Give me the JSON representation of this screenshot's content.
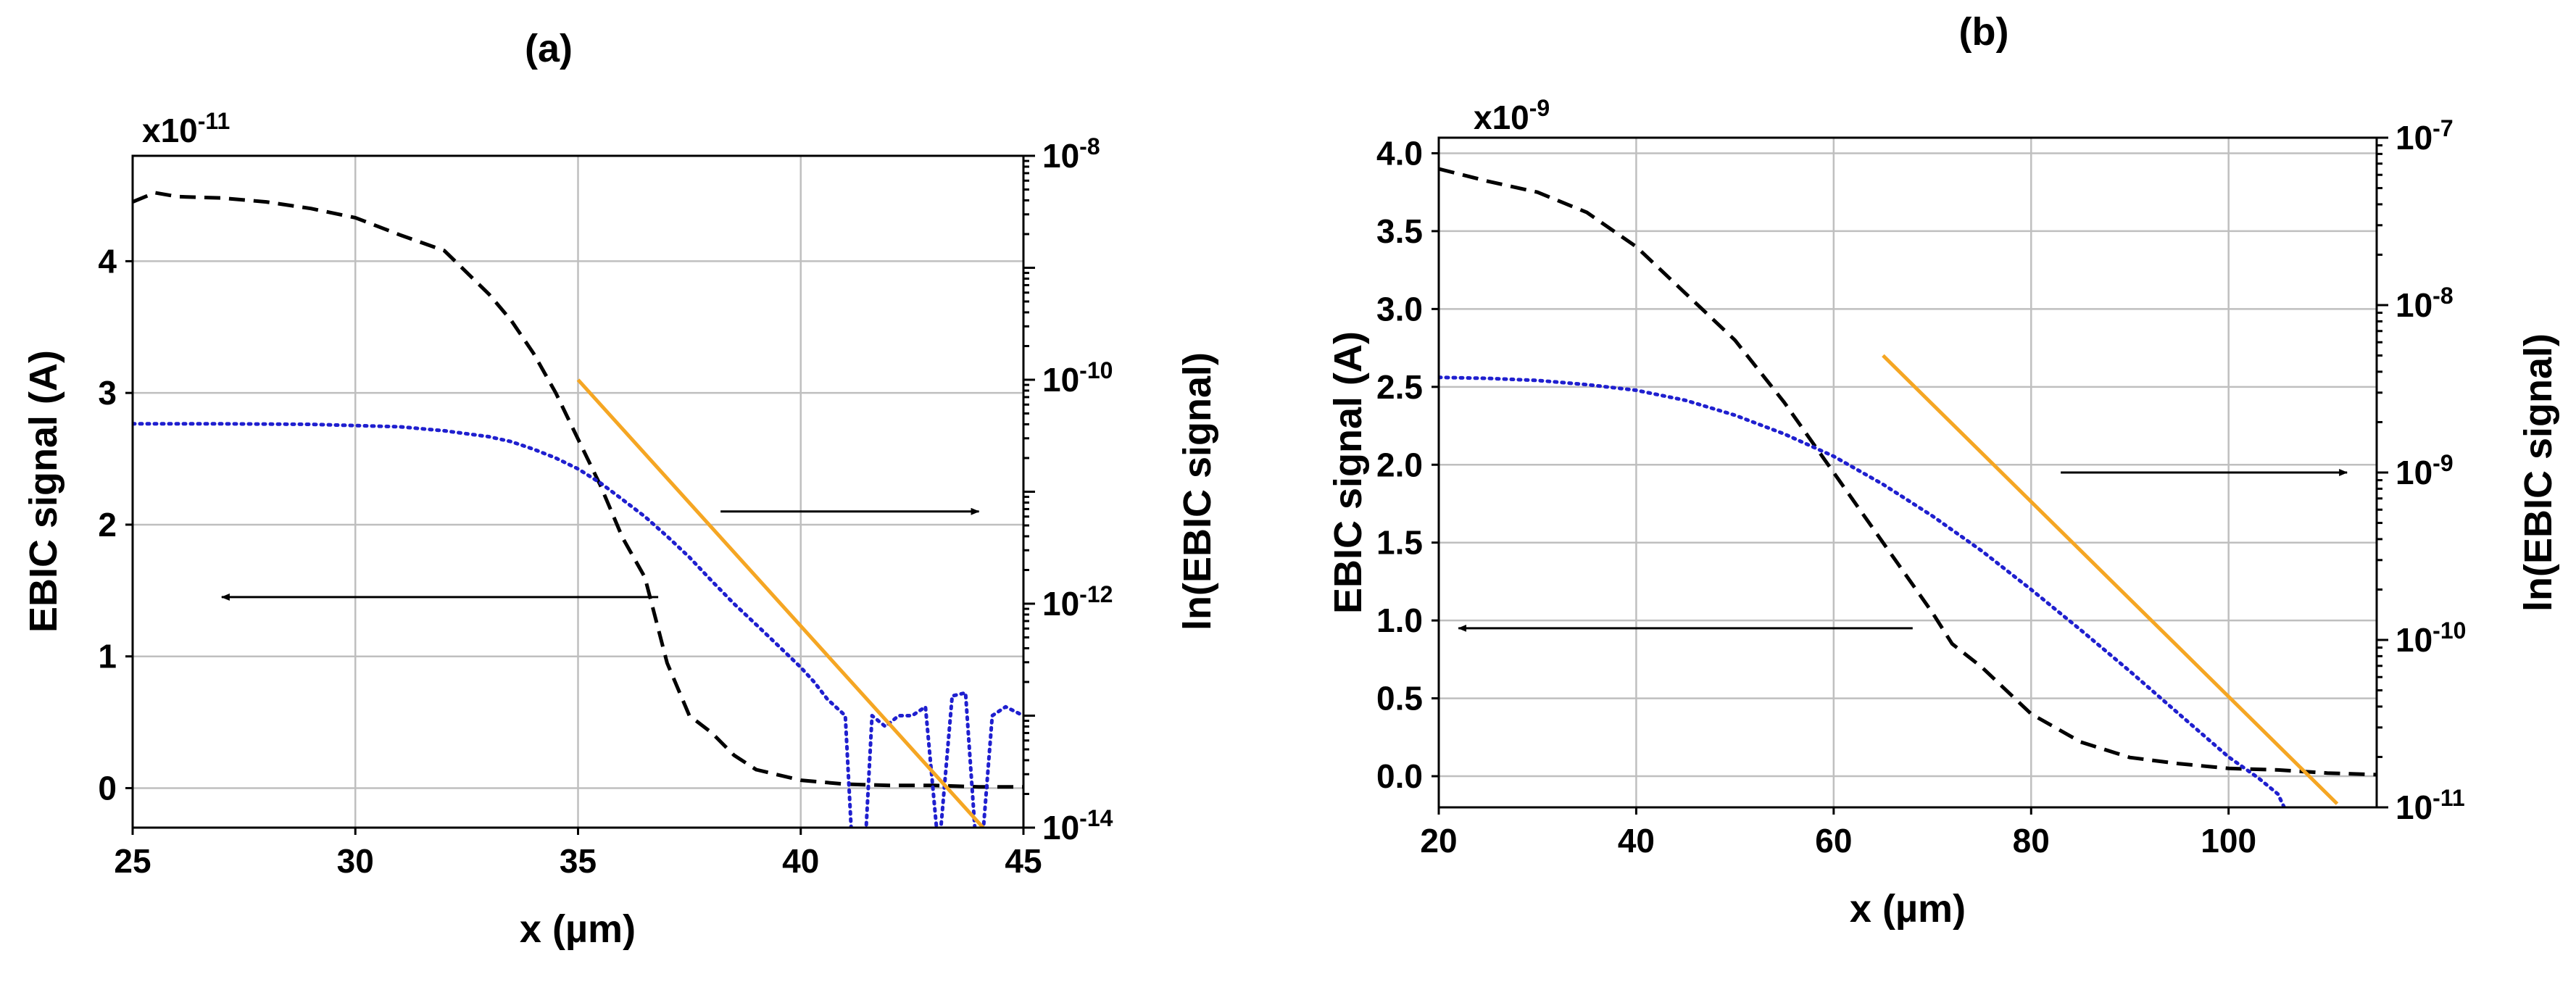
{
  "chart_data": [
    {
      "type": "line",
      "panel_label": "(a)",
      "xlabel": "x (µm)",
      "ylabel": "EBIC signal (A)",
      "ylabel_right": "ln(EBIC signal)",
      "xlim": [
        25,
        45
      ],
      "ylim": [
        -0.3,
        4.8
      ],
      "y_multiplier": "x10",
      "y_multiplier_exp": "-11",
      "x_ticks": [
        "25",
        "30",
        "35",
        "40",
        "45"
      ],
      "y_ticks": [
        "0",
        "1",
        "2",
        "3",
        "4"
      ],
      "y2_scale": "log",
      "y2_tick_bases": [
        "10",
        "10",
        "10",
        "10"
      ],
      "y2_tick_exps": [
        "-8",
        "-10",
        "-12",
        "-14"
      ],
      "grid": true,
      "series": [
        {
          "color": "#000000",
          "style": "dashed",
          "axis": "left",
          "x": [
            25,
            25.5,
            26,
            27,
            28,
            29,
            30,
            31,
            32,
            33,
            33.5,
            34,
            34.5,
            35,
            35.5,
            36,
            36.5,
            37,
            37.5,
            38,
            38.5,
            39,
            40,
            41,
            42,
            43,
            44,
            45
          ],
          "y": [
            4.45,
            4.52,
            4.49,
            4.48,
            4.45,
            4.4,
            4.33,
            4.2,
            4.08,
            3.75,
            3.55,
            3.3,
            3.0,
            2.65,
            2.3,
            1.9,
            1.6,
            0.95,
            0.55,
            0.42,
            0.25,
            0.14,
            0.06,
            0.03,
            0.02,
            0.02,
            0.01,
            0.01
          ]
        },
        {
          "color": "#1f1fcf",
          "style": "dotted",
          "axis": "right",
          "x": [
            25,
            27,
            29,
            31,
            32,
            33,
            33.5,
            34,
            34.5,
            35,
            35.5,
            36,
            36.5,
            37,
            37.5,
            38,
            38.5,
            39,
            39.5,
            40,
            40.3,
            40.6,
            41,
            41.2,
            41.4,
            41.6,
            41.9,
            42.2,
            42.5,
            42.8,
            43.1,
            43.4,
            43.7,
            44.0,
            44.3,
            44.6,
            45
          ],
          "y": [
            4.04e-11,
            4.04e-11,
            4e-11,
            3.8e-11,
            3.5e-11,
            3.1e-11,
            2.8e-11,
            2.4e-11,
            2e-11,
            1.6e-11,
            1.2e-11,
            8.5e-12,
            6e-12,
            4e-12,
            2.6e-12,
            1.6e-12,
            1e-12,
            6.5e-13,
            4.2e-13,
            2.7e-13,
            2e-13,
            1.4e-13,
            1e-13,
            3e-15,
            3e-15,
            1e-13,
            8e-14,
            1e-13,
            1e-13,
            1.2e-13,
            6e-15,
            1.5e-13,
            1.6e-13,
            3e-15,
            1e-13,
            1.2e-13,
            1e-13
          ]
        },
        {
          "color": "#f5a623",
          "style": "solid",
          "axis": "right",
          "x": [
            35,
            44.2
          ],
          "y": [
            1e-10,
            9e-15
          ]
        }
      ],
      "annotations": [
        {
          "text": "",
          "direction": "left",
          "x_from": 36.8,
          "x_to": 27.0,
          "y": 1.45
        },
        {
          "text": "",
          "direction": "right",
          "x_from": 38.2,
          "x_to": 44.0,
          "y": 2.1
        }
      ]
    },
    {
      "type": "line",
      "panel_label": "(b)",
      "xlabel": "x (µm)",
      "ylabel": "EBIC signal (A)",
      "ylabel_right": "ln(EBIC signal)",
      "xlim": [
        20,
        115
      ],
      "ylim": [
        -0.2,
        4.1
      ],
      "y_multiplier": "x10",
      "y_multiplier_exp": "-9",
      "x_ticks": [
        "20",
        "40",
        "60",
        "80",
        "100"
      ],
      "y_ticks": [
        "0.0",
        "0.5",
        "1.0",
        "1.5",
        "2.0",
        "2.5",
        "3.0",
        "3.5",
        "4.0"
      ],
      "y2_scale": "log",
      "y2_tick_bases": [
        "10",
        "10",
        "10",
        "10",
        "10"
      ],
      "y2_tick_exps": [
        "-7",
        "-8",
        "-9",
        "-10",
        "-11"
      ],
      "grid": true,
      "series": [
        {
          "color": "#000000",
          "style": "dashed",
          "axis": "left",
          "x": [
            20,
            25,
            30,
            35,
            40,
            45,
            50,
            55,
            60,
            65,
            70,
            72,
            75,
            80,
            85,
            90,
            95,
            100,
            105,
            110,
            115
          ],
          "y": [
            3.9,
            3.82,
            3.75,
            3.62,
            3.4,
            3.1,
            2.8,
            2.4,
            1.95,
            1.5,
            1.05,
            0.85,
            0.7,
            0.4,
            0.22,
            0.12,
            0.08,
            0.05,
            0.04,
            0.02,
            0.01
          ]
        },
        {
          "color": "#1f1fcf",
          "style": "dotted",
          "axis": "right",
          "x": [
            20,
            25,
            30,
            35,
            40,
            45,
            50,
            55,
            60,
            65,
            70,
            75,
            80,
            85,
            90,
            95,
            100,
            103,
            105,
            106,
            107
          ],
          "y": [
            3.7e-09,
            3.65e-09,
            3.55e-09,
            3.35e-09,
            3.1e-09,
            2.7e-09,
            2.2e-09,
            1.7e-09,
            1.25e-09,
            8.5e-10,
            5.5e-10,
            3.4e-10,
            2e-10,
            1.15e-10,
            6.5e-11,
            3.6e-11,
            2e-11,
            1.5e-11,
            1.2e-11,
            9e-12,
            9e-12
          ]
        },
        {
          "color": "#f5a623",
          "style": "solid",
          "axis": "right",
          "x": [
            65,
            111
          ],
          "y": [
            5e-09,
            1.05e-11
          ]
        }
      ],
      "annotations": [
        {
          "text": "",
          "direction": "left",
          "x_from": 68,
          "x_to": 22,
          "y": 0.95
        },
        {
          "text": "",
          "direction": "right",
          "x_from": 83,
          "x_to": 112,
          "y": 1.95
        }
      ]
    }
  ]
}
